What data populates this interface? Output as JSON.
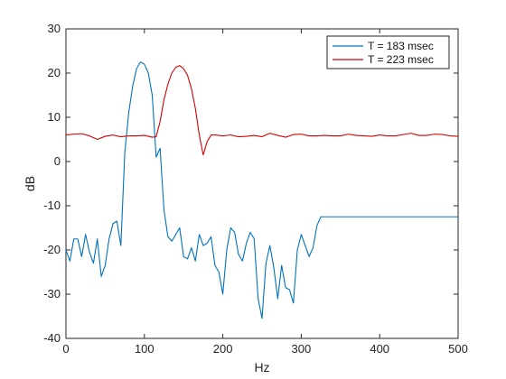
{
  "chart_data": {
    "type": "line",
    "title": "",
    "xlabel": "Hz",
    "ylabel": "dB",
    "xlim": [
      0,
      500
    ],
    "ylim": [
      -40,
      30
    ],
    "xticks": [
      0,
      100,
      200,
      300,
      400,
      500
    ],
    "yticks": [
      -40,
      -30,
      -20,
      -10,
      0,
      10,
      20,
      30
    ],
    "grid": false,
    "legend_position": "top-right",
    "series": [
      {
        "name": "T = 183 msec",
        "color": "#0072bd",
        "x": [
          0,
          5,
          10,
          15,
          20,
          25,
          30,
          35,
          40,
          45,
          50,
          55,
          60,
          65,
          70,
          75,
          80,
          85,
          90,
          95,
          100,
          105,
          110,
          115,
          120,
          125,
          130,
          135,
          140,
          145,
          150,
          155,
          160,
          165,
          170,
          175,
          180,
          185,
          190,
          195,
          200,
          205,
          210,
          215,
          220,
          225,
          230,
          235,
          240,
          245,
          250,
          255,
          260,
          265,
          270,
          275,
          280,
          285,
          290,
          295,
          300,
          305,
          310,
          315,
          320,
          325,
          330,
          335,
          340,
          345,
          350,
          355,
          360,
          365,
          370,
          375,
          380,
          385,
          390,
          395,
          400,
          405,
          410,
          415,
          420,
          425,
          430,
          435,
          440,
          445,
          450,
          455,
          460,
          465,
          470,
          475,
          480,
          485,
          490,
          495,
          500
        ],
        "y": [
          -20,
          -22.5,
          -17.5,
          -17.5,
          -21.5,
          -16.5,
          -20.5,
          -23,
          -17.5,
          -26,
          -23.5,
          -17.5,
          -14,
          -13.5,
          -19,
          2,
          11,
          17,
          21,
          22.5,
          22,
          20,
          15,
          1,
          3,
          -11,
          -17,
          -18,
          -16.5,
          -15,
          -21.5,
          -22,
          -19.5,
          -22.5,
          -16.5,
          -19,
          -18.5,
          -17,
          -23.5,
          -25,
          -30,
          -20,
          -15,
          -16,
          -21,
          -22.5,
          -18.5,
          -16,
          -17.5,
          -31,
          -35.5,
          -23,
          -19,
          -24,
          -31,
          -23.5,
          -28.5,
          -29,
          -32,
          -20,
          -16.5,
          -19,
          -21.5,
          -19.5,
          -14.5,
          -12.5,
          -12.5,
          -12.5,
          -12.5,
          -12.5,
          -12.5,
          -12.5,
          -12.5,
          -12.5,
          -12.5,
          -12.5,
          -12.5,
          -12.5,
          -12.5,
          -12.5,
          -12.5,
          -12.5,
          -12.5,
          -12.5,
          -12.5,
          -12.5,
          -12.5,
          -12.5,
          -12.5,
          -12.5,
          -12.5,
          -12.5,
          -12.5,
          -12.5,
          -12.5,
          -12.5,
          -12.5,
          -12.5,
          -12.5,
          -12.5,
          -12.5
        ]
      },
      {
        "name": "T = 223 msec",
        "color": "#d40000",
        "x": [
          0,
          10,
          20,
          30,
          40,
          50,
          60,
          70,
          80,
          90,
          100,
          110,
          115,
          120,
          125,
          130,
          135,
          140,
          145,
          150,
          155,
          160,
          165,
          170,
          175,
          180,
          185,
          190,
          200,
          210,
          220,
          230,
          240,
          250,
          260,
          270,
          280,
          290,
          300,
          310,
          320,
          330,
          340,
          350,
          360,
          370,
          380,
          390,
          400,
          410,
          420,
          430,
          440,
          450,
          460,
          470,
          480,
          490,
          500
        ],
        "y": [
          6,
          6.2,
          6.3,
          5.8,
          5.0,
          5.7,
          6.0,
          5.6,
          5.8,
          5.8,
          5.9,
          5.5,
          5.6,
          9,
          14,
          17.5,
          20,
          21.3,
          21.7,
          21,
          19.5,
          16.5,
          12,
          6,
          1.5,
          4.5,
          6,
          6,
          5.8,
          6,
          5.6,
          5.7,
          5.9,
          5.6,
          6.4,
          5.9,
          5.5,
          6.1,
          6.2,
          5.8,
          5.8,
          5.9,
          5.8,
          5.8,
          6.2,
          5.9,
          5.8,
          5.7,
          6.0,
          5.8,
          5.8,
          6.1,
          6.4,
          5.9,
          5.9,
          6.2,
          6.1,
          5.8,
          5.7
        ]
      }
    ]
  }
}
